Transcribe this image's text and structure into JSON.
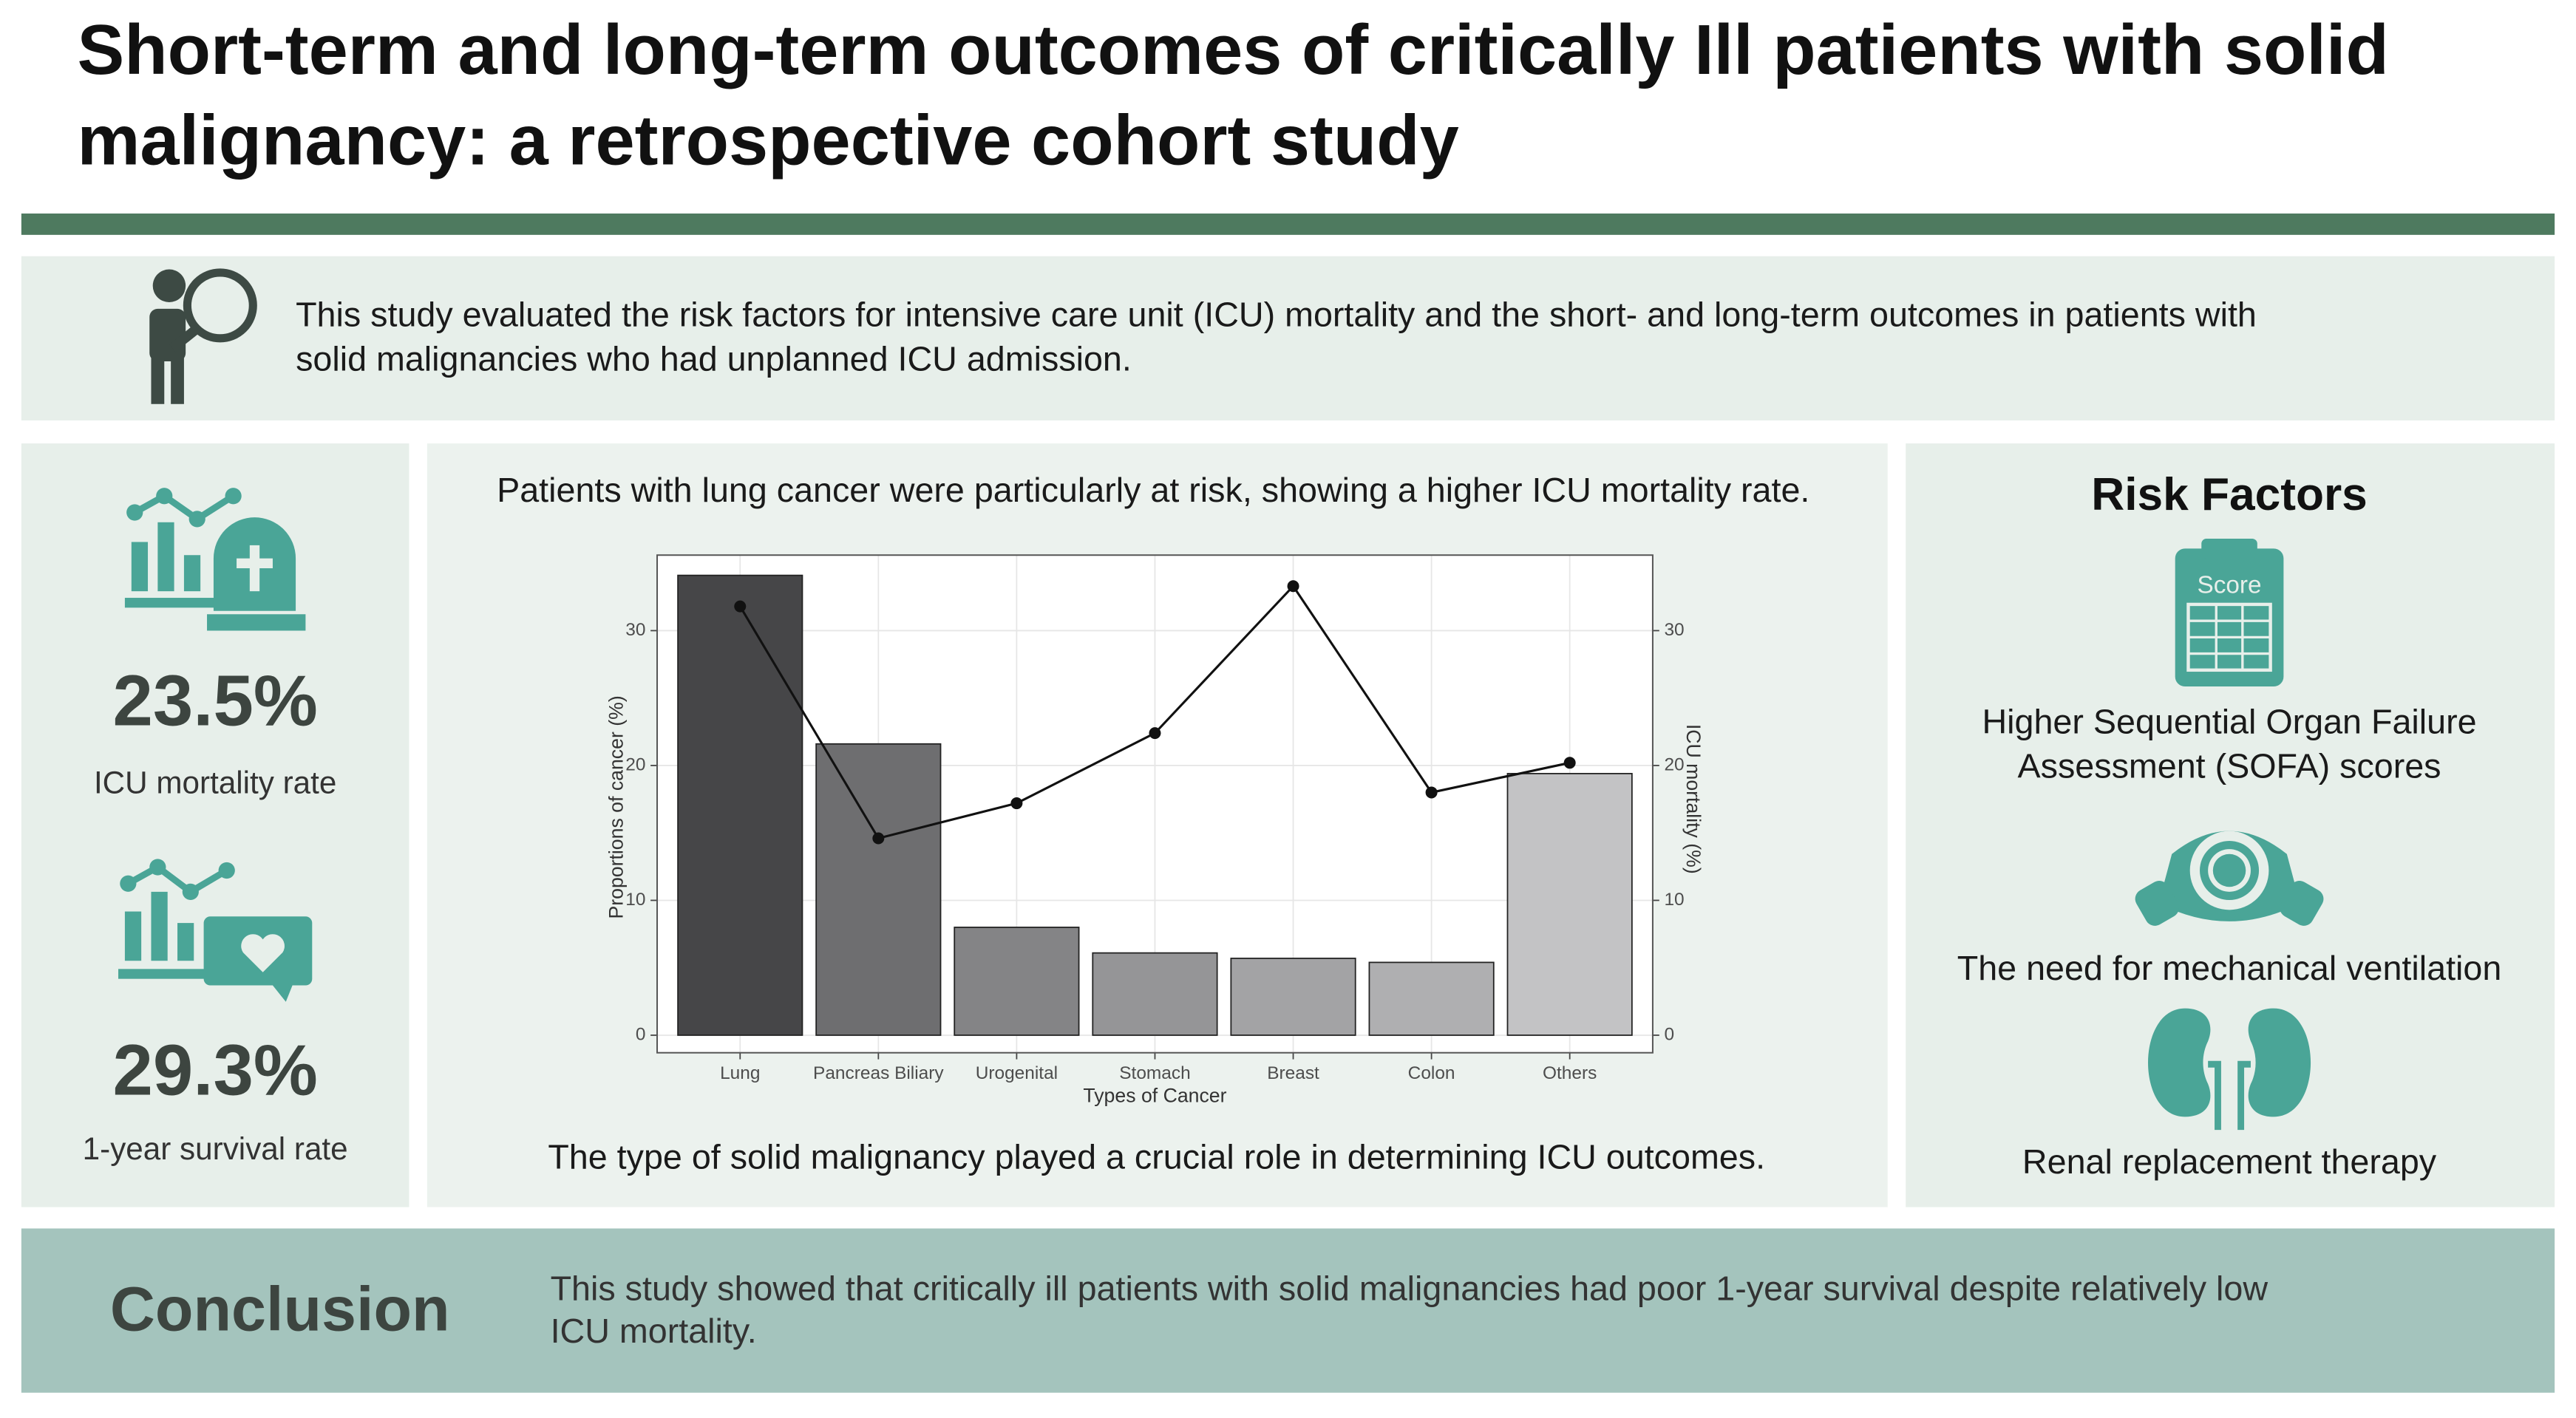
{
  "title": [
    "Short-term and long-term outcomes of critically Ill patients with solid",
    "malignancy: a retrospective cohort study"
  ],
  "intro": [
    "This study evaluated the risk factors for intensive care unit (ICU) mortality and the short- and long-term outcomes in patients with",
    "solid malignancies who had unplanned ICU admission."
  ],
  "stats": [
    {
      "value": "23.5%",
      "label": "ICU mortality rate"
    },
    {
      "value": "29.3%",
      "label": "1-year survival rate"
    }
  ],
  "chart_panel": {
    "headline": "Patients with lung cancer were particularly at risk, showing a higher ICU mortality rate.",
    "footnote": "The type of solid malignancy played a crucial role in determining ICU outcomes."
  },
  "chart_data": {
    "type": "bar",
    "categories": [
      "Lung",
      "Pancreas Biliary",
      "Urogenital",
      "Stomach",
      "Breast",
      "Colon",
      "Others"
    ],
    "series": [
      {
        "type": "bar",
        "colors": [
          "#464648",
          "#6e6e70",
          "#848486",
          "#959597",
          "#a3a3a5",
          "#afafb1",
          "#c3c3c5"
        ],
        "values": [
          34.1,
          21.6,
          8.0,
          6.1,
          5.7,
          5.4,
          19.4
        ]
      },
      {
        "type": "line",
        "color": "#111111",
        "axis": "y2",
        "values": [
          31.8,
          14.6,
          17.2,
          22.4,
          33.3,
          18.0,
          20.2
        ]
      }
    ],
    "xlabel": "Types of Cancer",
    "ylabel": "Proportions of cancer (%)",
    "y2label": "ICU mortality (%)",
    "ylim": [
      -1.3,
      35.6
    ],
    "yticks": [
      0,
      10,
      20,
      30
    ],
    "y2lim": [
      -1.3,
      35.6
    ],
    "y2ticks": [
      0,
      10,
      20,
      30
    ],
    "grid": true
  },
  "risk_factors": {
    "heading": "Risk Factors",
    "icon_text": "Score",
    "items": [
      [
        "Higher Sequential Organ Failure",
        "Assessment (SOFA) scores"
      ],
      [
        "The need for mechanical ventilation"
      ],
      [
        "Renal replacement therapy"
      ]
    ]
  },
  "conclusion": {
    "heading": "Conclusion",
    "text": [
      "This study showed that critically ill patients with solid malignancies had poor 1-year survival despite relatively low",
      "ICU mortality."
    ]
  }
}
